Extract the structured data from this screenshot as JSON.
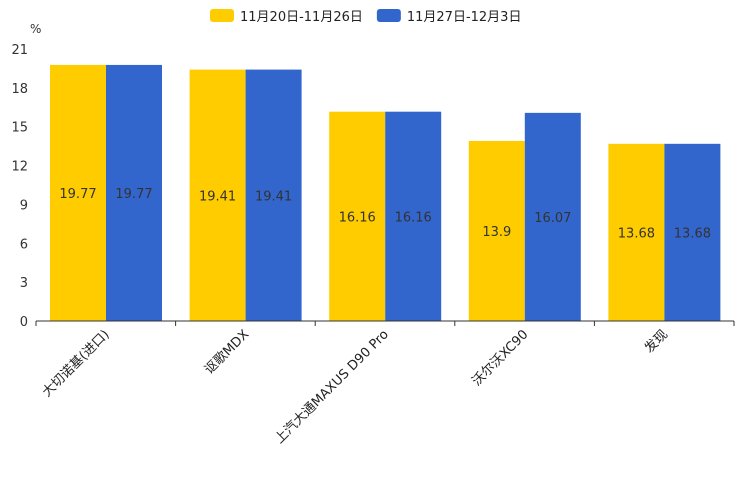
{
  "chart_data": {
    "type": "bar",
    "title": "",
    "ylabel": "%",
    "xlabel": "",
    "ylim": [
      0,
      21
    ],
    "yticks": [
      0,
      3,
      6,
      9,
      12,
      15,
      18,
      21
    ],
    "categories": [
      "大切诺基(进口)",
      "讴歌MDX",
      "上汽大通MAXUS D90 Pro",
      "沃尔沃XC90",
      "发现"
    ],
    "series": [
      {
        "name": "11月20日-11月26日",
        "color": "#FFCC00",
        "values": [
          19.77,
          19.41,
          16.16,
          13.9,
          13.68
        ]
      },
      {
        "name": "11月27日-12月3日",
        "color": "#3366CC",
        "values": [
          19.77,
          19.41,
          16.16,
          16.07,
          13.68
        ]
      }
    ],
    "grid": false,
    "legend": "top-center"
  }
}
